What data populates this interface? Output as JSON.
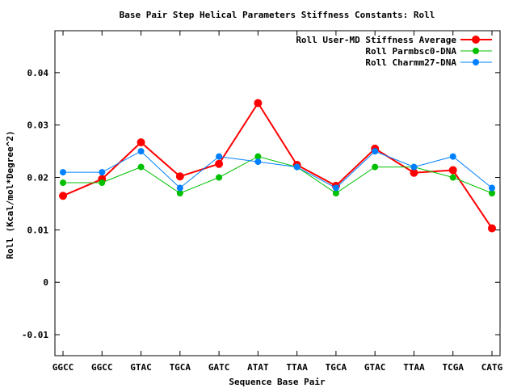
{
  "chart_data": {
    "type": "line",
    "title": "Base Pair Step Helical Parameters Stiffness Constants: Roll",
    "xlabel": "Sequence Base Pair",
    "ylabel": "Roll (Kcal/mol*Degree^2)",
    "categories": [
      "GGCC",
      "GGCC",
      "GTAC",
      "TGCA",
      "GATC",
      "ATAT",
      "TTAA",
      "TGCA",
      "GTAC",
      "TTAA",
      "TCGA",
      "CATG"
    ],
    "ylim": [
      -0.014,
      0.048
    ],
    "yticks": [
      -0.01,
      0,
      0.01,
      0.02,
      0.03,
      0.04
    ],
    "ytick_labels": [
      "-0.01",
      "0",
      "0.01",
      "0.02",
      "0.03",
      "0.04"
    ],
    "grid": false,
    "legend_position": "top-right",
    "series": [
      {
        "name": "Roll User-MD Stiffness Average",
        "color": "#ff0000",
        "values": [
          0.0165,
          0.0197,
          0.0267,
          0.0202,
          0.0226,
          0.0342,
          0.0224,
          0.0184,
          0.0255,
          0.0209,
          0.0214,
          0.0103
        ]
      },
      {
        "name": "Roll Parmbsc0-DNA",
        "color": "#00c000",
        "values": [
          0.019,
          0.019,
          0.022,
          0.017,
          0.02,
          0.024,
          0.022,
          0.017,
          0.022,
          0.022,
          0.02,
          0.017
        ]
      },
      {
        "name": "Roll Charmm27-DNA",
        "color": "#0080ff",
        "values": [
          0.021,
          0.021,
          0.025,
          0.018,
          0.024,
          0.023,
          0.022,
          0.018,
          0.025,
          0.022,
          0.024,
          0.018
        ]
      }
    ]
  }
}
